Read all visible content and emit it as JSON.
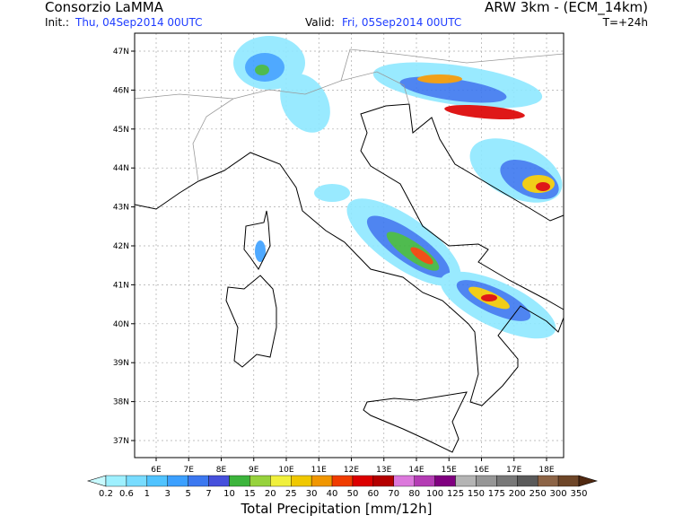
{
  "header": {
    "producer": "Consorzio LaMMA",
    "init_label": "Init.:",
    "init_value": "Thu, 04Sep2014 00UTC",
    "valid_label": "Valid:",
    "valid_value": "Fri, 05Sep2014 00UTC",
    "model": "ARW 3km - (ECM_14km)",
    "lead_time": "T=+24h"
  },
  "map": {
    "lat_labels": [
      "47N",
      "46N",
      "45N",
      "44N",
      "43N",
      "42N",
      "41N",
      "40N",
      "39N",
      "38N",
      "37N"
    ],
    "lon_labels": [
      "6E",
      "7E",
      "8E",
      "9E",
      "10E",
      "11E",
      "12E",
      "13E",
      "14E",
      "15E",
      "16E",
      "17E",
      "18E"
    ]
  },
  "legend": {
    "title": "Total Precipitation [mm/12h]",
    "labels": [
      0.2,
      0.6,
      1,
      3,
      5,
      7,
      10,
      15,
      20,
      25,
      30,
      40,
      50,
      60,
      70,
      80,
      100,
      125,
      150,
      175,
      200,
      250,
      300,
      350
    ],
    "below_color": "#c8faff",
    "colors": [
      "#9ef0ff",
      "#78dcff",
      "#50c3ff",
      "#3ca0ff",
      "#3c78f0",
      "#4650dc",
      "#3cb43c",
      "#96d23c",
      "#f0f03c",
      "#f0c800",
      "#f09600",
      "#f03c00",
      "#dc0000",
      "#b40000",
      "#dc78dc",
      "#b43cb4",
      "#800080",
      "#b4b4b4",
      "#969696",
      "#787878",
      "#5a5a5a",
      "#8c6446",
      "#6e4628"
    ],
    "above_color": "#502810"
  }
}
